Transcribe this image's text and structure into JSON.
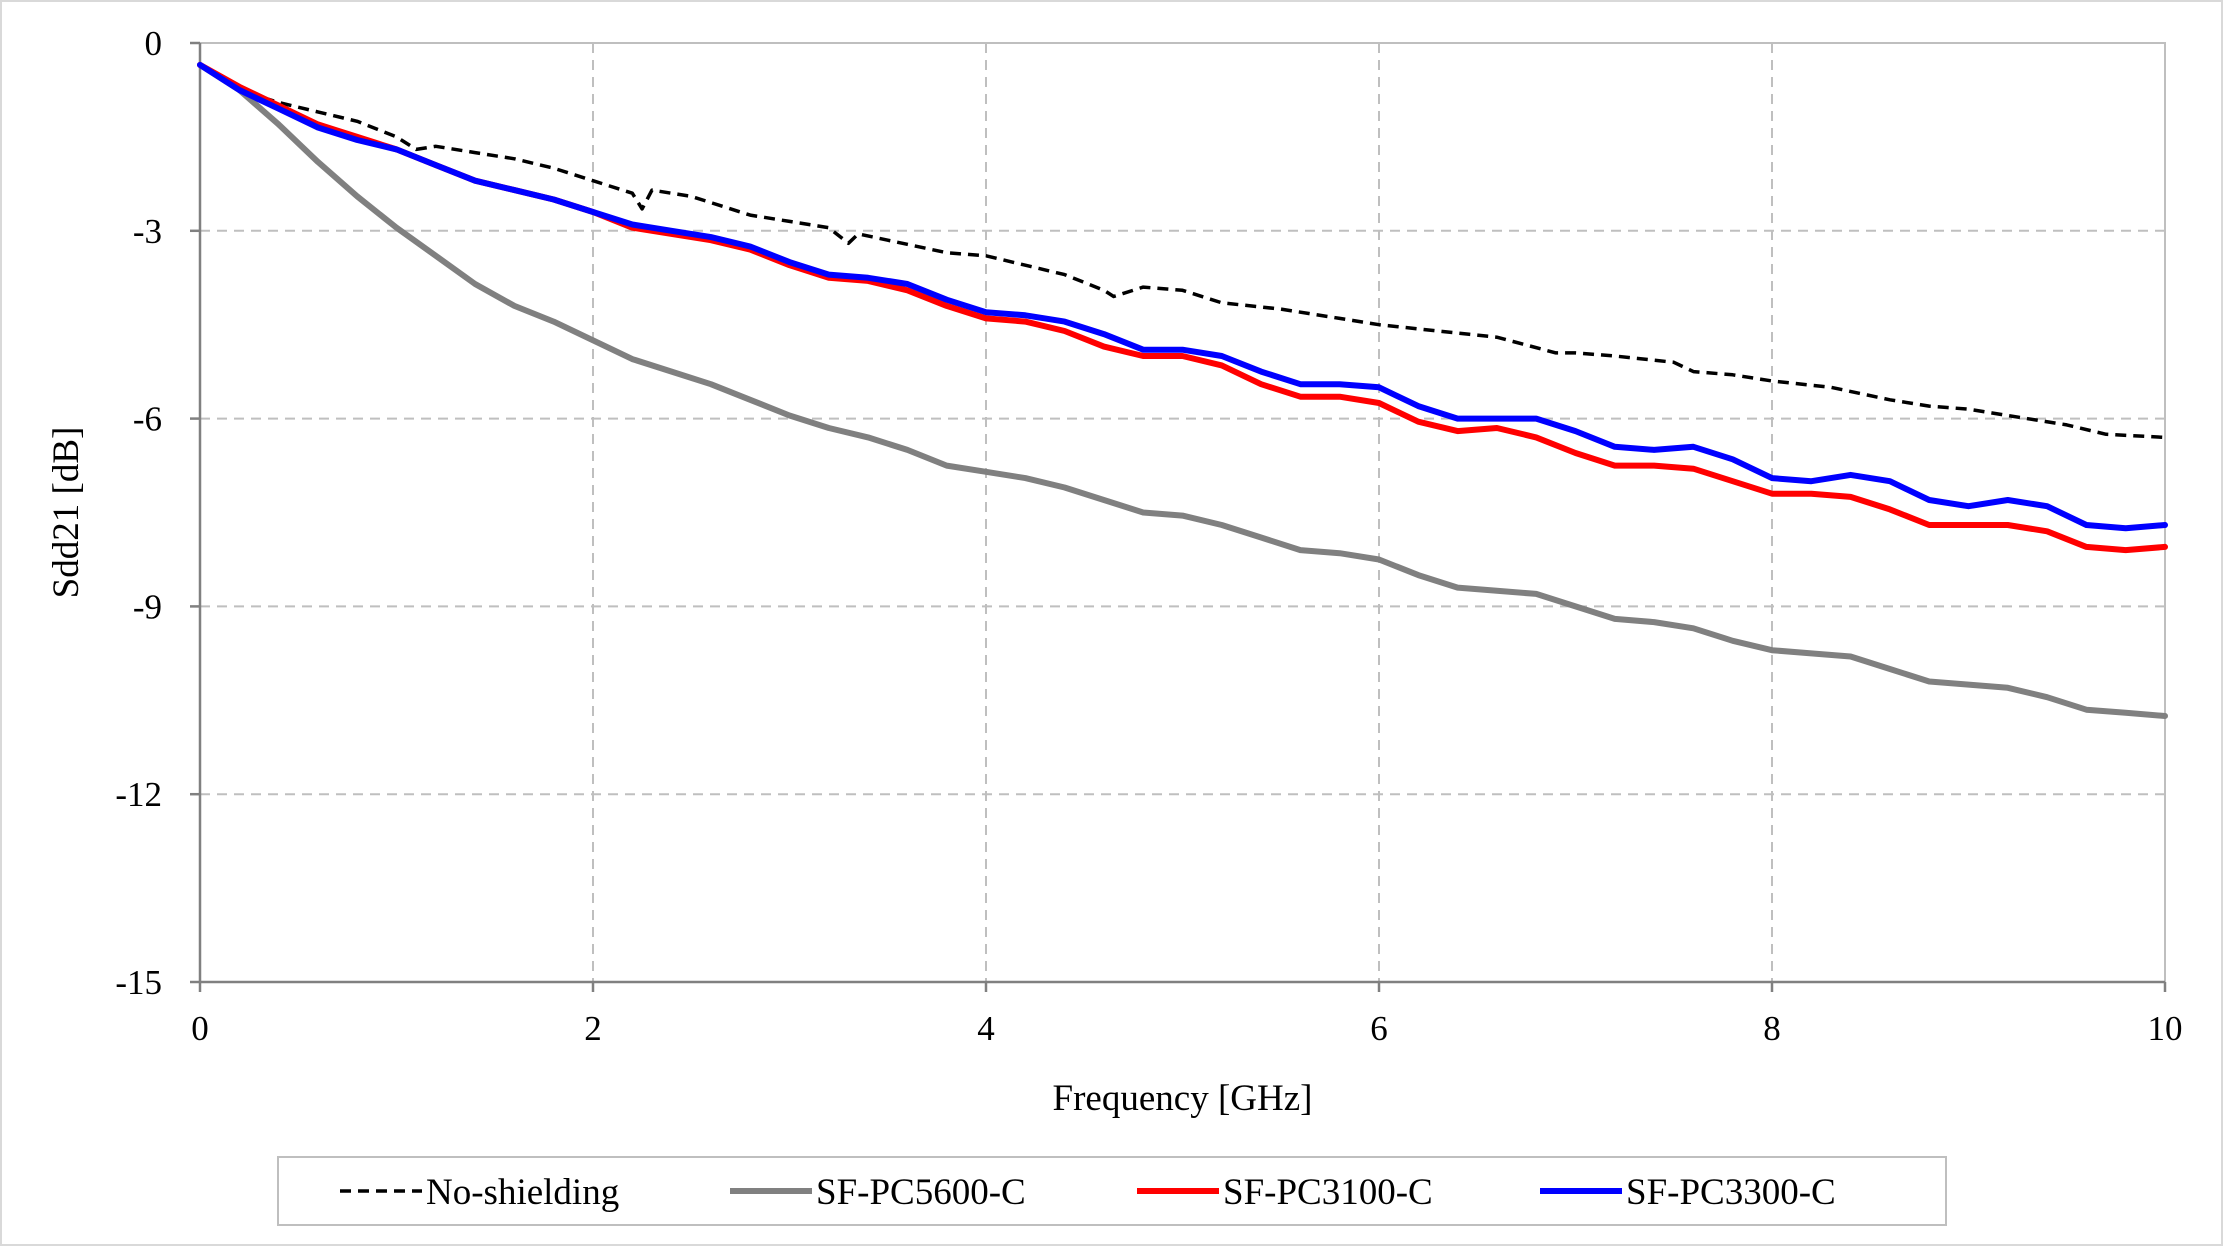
{
  "chart_data": {
    "type": "line",
    "title": "",
    "xlabel": "Frequency [GHz]",
    "ylabel": "Sdd21 [dB]",
    "xlim": [
      0,
      10
    ],
    "ylim": [
      -15,
      0
    ],
    "xticks": [
      0,
      2,
      4,
      6,
      8,
      10
    ],
    "yticks": [
      0,
      -3,
      -6,
      -9,
      -12,
      -15
    ],
    "xtick_labels": [
      "0",
      "2",
      "4",
      "6",
      "8",
      "10"
    ],
    "ytick_labels": [
      "0",
      "-3",
      "-6",
      "-9",
      "-12",
      "-15"
    ],
    "grid": true,
    "legend_position": "bottom",
    "series": [
      {
        "name": "No-shielding",
        "color": "#000000",
        "style": "dashed",
        "x": [
          0,
          0.2,
          0.4,
          0.6,
          0.8,
          1.0,
          1.1,
          1.2,
          1.4,
          1.6,
          1.8,
          2.0,
          2.2,
          2.25,
          2.3,
          2.5,
          2.8,
          3.0,
          3.2,
          3.3,
          3.35,
          3.5,
          3.8,
          4.0,
          4.2,
          4.4,
          4.6,
          4.65,
          4.8,
          5.0,
          5.2,
          5.5,
          5.8,
          6.0,
          6.3,
          6.6,
          6.9,
          7.0,
          7.2,
          7.5,
          7.6,
          7.8,
          8.0,
          8.3,
          8.6,
          8.8,
          9.0,
          9.2,
          9.5,
          9.7,
          10.0
        ],
        "values": [
          -0.35,
          -0.75,
          -0.95,
          -1.1,
          -1.25,
          -1.5,
          -1.7,
          -1.65,
          -1.75,
          -1.85,
          -2.0,
          -2.2,
          -2.4,
          -2.65,
          -2.35,
          -2.45,
          -2.75,
          -2.85,
          -2.95,
          -3.2,
          -3.05,
          -3.15,
          -3.35,
          -3.4,
          -3.55,
          -3.7,
          -3.95,
          -4.05,
          -3.9,
          -3.95,
          -4.15,
          -4.25,
          -4.4,
          -4.5,
          -4.6,
          -4.7,
          -4.95,
          -4.95,
          -5.0,
          -5.1,
          -5.25,
          -5.3,
          -5.4,
          -5.5,
          -5.7,
          -5.8,
          -5.85,
          -5.95,
          -6.1,
          -6.25,
          -6.3
        ]
      },
      {
        "name": "SF-PC5600-C",
        "color": "#808080",
        "style": "solid",
        "x": [
          0,
          0.2,
          0.4,
          0.6,
          0.8,
          1.0,
          1.2,
          1.4,
          1.6,
          1.8,
          2.0,
          2.2,
          2.4,
          2.6,
          2.8,
          3.0,
          3.2,
          3.4,
          3.6,
          3.8,
          4.0,
          4.2,
          4.4,
          4.6,
          4.8,
          5.0,
          5.2,
          5.4,
          5.6,
          5.8,
          6.0,
          6.2,
          6.4,
          6.6,
          6.8,
          7.0,
          7.2,
          7.4,
          7.6,
          7.8,
          8.0,
          8.2,
          8.4,
          8.6,
          8.8,
          9.0,
          9.2,
          9.4,
          9.6,
          9.8,
          10.0
        ],
        "values": [
          -0.35,
          -0.75,
          -1.3,
          -1.9,
          -2.45,
          -2.95,
          -3.4,
          -3.85,
          -4.2,
          -4.45,
          -4.75,
          -5.05,
          -5.25,
          -5.45,
          -5.7,
          -5.95,
          -6.15,
          -6.3,
          -6.5,
          -6.75,
          -6.85,
          -6.95,
          -7.1,
          -7.3,
          -7.5,
          -7.55,
          -7.7,
          -7.9,
          -8.1,
          -8.15,
          -8.25,
          -8.5,
          -8.7,
          -8.75,
          -8.8,
          -9.0,
          -9.2,
          -9.25,
          -9.35,
          -9.55,
          -9.7,
          -9.75,
          -9.8,
          -10.0,
          -10.2,
          -10.25,
          -10.3,
          -10.45,
          -10.65,
          -10.7,
          -10.75
        ]
      },
      {
        "name": "SF-PC3100-C",
        "color": "#ff0000",
        "style": "solid",
        "x": [
          0,
          0.2,
          0.4,
          0.6,
          0.8,
          1.0,
          1.2,
          1.4,
          1.6,
          1.8,
          2.0,
          2.2,
          2.4,
          2.6,
          2.8,
          3.0,
          3.2,
          3.4,
          3.6,
          3.8,
          4.0,
          4.2,
          4.4,
          4.6,
          4.8,
          5.0,
          5.2,
          5.4,
          5.6,
          5.8,
          6.0,
          6.2,
          6.4,
          6.6,
          6.8,
          7.0,
          7.2,
          7.4,
          7.6,
          7.8,
          8.0,
          8.2,
          8.4,
          8.6,
          8.8,
          9.0,
          9.2,
          9.4,
          9.6,
          9.8,
          10.0
        ],
        "values": [
          -0.35,
          -0.7,
          -1.0,
          -1.3,
          -1.5,
          -1.7,
          -1.95,
          -2.2,
          -2.35,
          -2.5,
          -2.7,
          -2.95,
          -3.05,
          -3.15,
          -3.3,
          -3.55,
          -3.75,
          -3.8,
          -3.95,
          -4.2,
          -4.4,
          -4.45,
          -4.6,
          -4.85,
          -5.0,
          -5.0,
          -5.15,
          -5.45,
          -5.65,
          -5.65,
          -5.75,
          -6.05,
          -6.2,
          -6.15,
          -6.3,
          -6.55,
          -6.75,
          -6.75,
          -6.8,
          -7.0,
          -7.2,
          -7.2,
          -7.25,
          -7.45,
          -7.7,
          -7.7,
          -7.7,
          -7.8,
          -8.05,
          -8.1,
          -8.05
        ]
      },
      {
        "name": "SF-PC3300-C",
        "color": "#0000ff",
        "style": "solid",
        "x": [
          0,
          0.2,
          0.4,
          0.6,
          0.8,
          1.0,
          1.2,
          1.4,
          1.6,
          1.8,
          2.0,
          2.2,
          2.4,
          2.6,
          2.8,
          3.0,
          3.2,
          3.4,
          3.6,
          3.8,
          4.0,
          4.2,
          4.4,
          4.6,
          4.8,
          5.0,
          5.2,
          5.4,
          5.6,
          5.8,
          6.0,
          6.2,
          6.4,
          6.6,
          6.8,
          7.0,
          7.2,
          7.4,
          7.6,
          7.8,
          8.0,
          8.2,
          8.4,
          8.6,
          8.8,
          9.0,
          9.2,
          9.4,
          9.6,
          9.8,
          10.0
        ],
        "values": [
          -0.35,
          -0.75,
          -1.05,
          -1.35,
          -1.55,
          -1.7,
          -1.95,
          -2.2,
          -2.35,
          -2.5,
          -2.7,
          -2.9,
          -3.0,
          -3.1,
          -3.25,
          -3.5,
          -3.7,
          -3.75,
          -3.85,
          -4.1,
          -4.3,
          -4.35,
          -4.45,
          -4.65,
          -4.9,
          -4.9,
          -5.0,
          -5.25,
          -5.45,
          -5.45,
          -5.5,
          -5.8,
          -6.0,
          -6.0,
          -6.0,
          -6.2,
          -6.45,
          -6.5,
          -6.45,
          -6.65,
          -6.95,
          -7.0,
          -6.9,
          -7.0,
          -7.3,
          -7.4,
          -7.3,
          -7.4,
          -7.7,
          -7.75,
          -7.7
        ]
      }
    ]
  }
}
